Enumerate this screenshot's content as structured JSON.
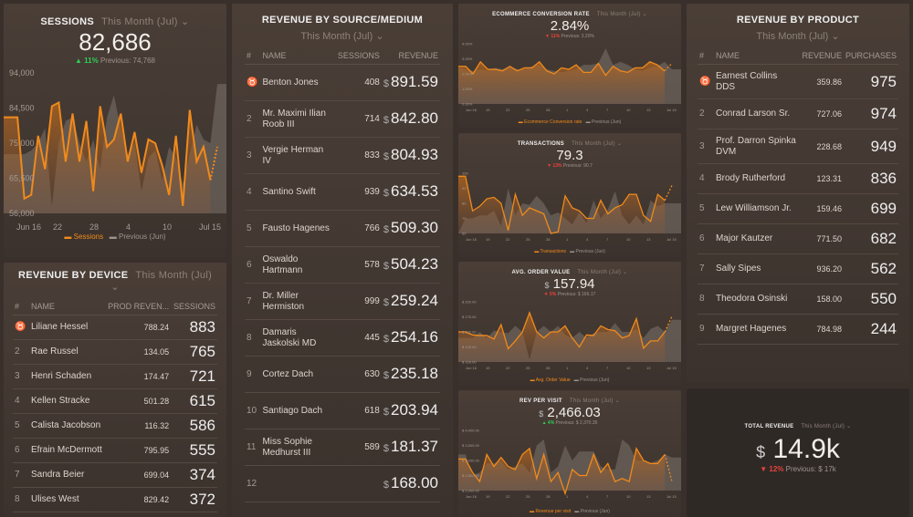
{
  "sessions": {
    "title": "SESSIONS",
    "period": "This Month (Jul)",
    "value": "82,686",
    "change": "11%",
    "direction": "up",
    "previous": "Previous: 74,768",
    "legend_current": "Sessions",
    "legend_previous": "Previous (Jun)"
  },
  "device": {
    "title": "REVENUE BY DEVICE",
    "period": "This Month (Jul)",
    "columns": [
      "#",
      "NAME",
      "PROD REVEN...",
      "SESSIONS"
    ],
    "rows": [
      {
        "rank": "1",
        "name": "Liliane Hessel",
        "rev": "788.24",
        "val": "883"
      },
      {
        "rank": "2",
        "name": "Rae Russel",
        "rev": "134.05",
        "val": "765"
      },
      {
        "rank": "3",
        "name": "Henri Schaden",
        "rev": "174.47",
        "val": "721"
      },
      {
        "rank": "4",
        "name": "Kellen Stracke",
        "rev": "501.28",
        "val": "615"
      },
      {
        "rank": "5",
        "name": "Calista Jacobson",
        "rev": "116.32",
        "val": "586"
      },
      {
        "rank": "6",
        "name": "Efrain McDermott",
        "rev": "795.95",
        "val": "555"
      },
      {
        "rank": "7",
        "name": "Sandra Beier",
        "rev": "699.04",
        "val": "374"
      },
      {
        "rank": "8",
        "name": "Ulises West",
        "rev": "829.42",
        "val": "372"
      }
    ]
  },
  "source": {
    "title": "REVENUE BY SOURCE/MEDIUM",
    "period": "This Month (Jul)",
    "columns": [
      "#",
      "NAME",
      "SESSIONS",
      "REVENUE"
    ],
    "currency": "$",
    "rows": [
      {
        "rank": "1",
        "name": "Benton Jones",
        "sessions": "408",
        "rev": "891.59"
      },
      {
        "rank": "2",
        "name": "Mr. Maximi Ilian Roob III",
        "sessions": "714",
        "rev": "842.80"
      },
      {
        "rank": "3",
        "name": "Vergie Herman IV",
        "sessions": "833",
        "rev": "804.93"
      },
      {
        "rank": "4",
        "name": "Santino Swift",
        "sessions": "939",
        "rev": "634.53"
      },
      {
        "rank": "5",
        "name": "Fausto Hagenes",
        "sessions": "766",
        "rev": "509.30"
      },
      {
        "rank": "6",
        "name": "Oswaldo Hartmann",
        "sessions": "578",
        "rev": "504.23"
      },
      {
        "rank": "7",
        "name": "Dr. Miller Hermiston",
        "sessions": "999",
        "rev": "259.24"
      },
      {
        "rank": "8",
        "name": "Damaris Jaskolski MD",
        "sessions": "445",
        "rev": "254.16"
      },
      {
        "rank": "9",
        "name": "Cortez Dach",
        "sessions": "630",
        "rev": "235.18"
      },
      {
        "rank": "10",
        "name": "Santiago Dach",
        "sessions": "618",
        "rev": "203.94"
      },
      {
        "rank": "11",
        "name": "Miss Sophie Medhurst III",
        "sessions": "589",
        "rev": "181.37"
      },
      {
        "rank": "12",
        "name": "",
        "sessions": "",
        "rev": "168.00"
      }
    ]
  },
  "product": {
    "title": "REVENUE BY PRODUCT",
    "period": "This Month (Jul)",
    "columns": [
      "#",
      "NAME",
      "REVENUE",
      "PURCHASES"
    ],
    "rows": [
      {
        "rank": "1",
        "name": "Earnest Collins DDS",
        "rev": "359.86",
        "val": "975"
      },
      {
        "rank": "2",
        "name": "Conrad Larson Sr.",
        "rev": "727.06",
        "val": "974"
      },
      {
        "rank": "3",
        "name": "Prof. Darron Spinka DVM",
        "rev": "228.68",
        "val": "949"
      },
      {
        "rank": "4",
        "name": "Brody Rutherford",
        "rev": "123.31",
        "val": "836"
      },
      {
        "rank": "5",
        "name": "Lew Williamson Jr.",
        "rev": "159.46",
        "val": "699"
      },
      {
        "rank": "6",
        "name": "Major Kautzer",
        "rev": "771.50",
        "val": "682"
      },
      {
        "rank": "7",
        "name": "Sally Sipes",
        "rev": "936.20",
        "val": "562"
      },
      {
        "rank": "8",
        "name": "Theodora Osinski",
        "rev": "158.00",
        "val": "550"
      },
      {
        "rank": "9",
        "name": "Margret Hagenes",
        "rev": "784.98",
        "val": "244"
      }
    ]
  },
  "total": {
    "title": "TOTAL REVENUE",
    "period": "This Month (Jul)",
    "currency": "$",
    "value": "14.9k",
    "change": "12%",
    "direction": "down",
    "previous": "Previous: $ 17k"
  },
  "small": [
    {
      "title": "ECOMMERCE CONVERSION RATE",
      "period": "This Month (Jul)",
      "currency": "",
      "value": "2.84%",
      "change": "11%",
      "direction": "down",
      "previous": "Previous: 3.20%",
      "legend_current": "Ecommerce Conversion rate",
      "legend_previous": "Previous (Jun)"
    },
    {
      "title": "TRANSACTIONS",
      "period": "This Month (Jul)",
      "currency": "",
      "value": "79.3",
      "change": "13%",
      "direction": "down",
      "previous": "Previous: 90.7",
      "legend_current": "Transactions",
      "legend_previous": "Previous (Jun)"
    },
    {
      "title": "AVG. ORDER VALUE",
      "period": "This Month (Jul)",
      "currency": "$",
      "value": "157.94",
      "change": "5%",
      "direction": "down",
      "previous": "Previous: $ 166.17",
      "legend_current": "Avg. Order Value",
      "legend_previous": "Previous (Jun)"
    },
    {
      "title": "REV PER VISIT",
      "period": "This Month (Jul)",
      "currency": "$",
      "value": "2,466.03",
      "change": "4%",
      "direction": "up",
      "previous": "Previous: $ 2,370.35",
      "legend_current": "Revenue per visit",
      "legend_previous": "Previous (Jun)"
    }
  ],
  "colors": {
    "accent": "#f08a1c",
    "up": "#2ecc55",
    "down": "#e8433a"
  },
  "chart_data": [
    {
      "type": "area",
      "title": "SESSIONS",
      "ylim": [
        56000,
        94000
      ],
      "yticks": [
        "94,000",
        "84,500",
        "75,000",
        "65,500",
        "56,000"
      ],
      "xticks": [
        "Jun 16",
        "22",
        "28",
        "4",
        "10",
        "Jul 15"
      ],
      "series": [
        {
          "name": "Sessions",
          "values": [
            82000,
            82000,
            82000,
            60000,
            61000,
            77000,
            68000,
            85000,
            86000,
            70000,
            83000,
            70000,
            81000,
            62000,
            85000,
            74000,
            76000,
            83000,
            70000,
            78000,
            67000,
            76000,
            75000,
            69000,
            61000,
            77000,
            58000,
            84000,
            70000,
            74000,
            65000,
            74000
          ]
        },
        {
          "name": "Previous (Jun)",
          "values": [
            72000,
            72000,
            72000,
            72000,
            73000,
            75000,
            79000,
            58000,
            75000,
            81000,
            82000,
            75000,
            70000,
            76000,
            68000,
            82000,
            88000,
            79000,
            72000,
            75000,
            62000,
            71000,
            73000,
            65000,
            74000,
            71000,
            64000,
            72000,
            80000,
            76000,
            75000,
            91000
          ]
        }
      ]
    },
    {
      "type": "area",
      "title": "ECOMMERCE CONVERSION RATE",
      "ylim": [
        0,
        4
      ],
      "yticks": [
        "4.00%",
        "3.00%",
        "2.00%",
        "1.00%",
        "0.00%"
      ],
      "xticks": [
        "Jun 16",
        "19",
        "22",
        "25",
        "28",
        "1",
        "4",
        "7",
        "10",
        "13",
        "Jul 15"
      ],
      "series": [
        {
          "name": "Ecommerce Conversion rate",
          "values": [
            2.5,
            2.5,
            2,
            2.8,
            2.3,
            2.3,
            2.2,
            2.5,
            2.2,
            2.4,
            2.4,
            2.8,
            2.2,
            2,
            2.4,
            2.3,
            2.6,
            2.1,
            2.1,
            2.7,
            1.9,
            2.5,
            2.2,
            2.1,
            2.4,
            2.4,
            2.8,
            2.6,
            2.2,
            2.7
          ]
        },
        {
          "name": "Previous (Jun)",
          "values": [
            2.4,
            2.3,
            2.2,
            2.3,
            2.2,
            2.4,
            2.3,
            2.5,
            2.3,
            2.3,
            2.5,
            2.6,
            2.3,
            2.2,
            2.1,
            2.2,
            2.3,
            2.6,
            2.6,
            2.7,
            3.7,
            2.6,
            2.8,
            2.6,
            2.3,
            2.2,
            2.4,
            2.5,
            2.8,
            2.3
          ]
        }
      ]
    },
    {
      "type": "area",
      "title": "TRANSACTIONS",
      "ylim": [
        60,
        100
      ],
      "yticks": [
        "100",
        "90",
        "80",
        "70",
        "60"
      ],
      "xticks": [
        "Jun 16",
        "19",
        "22",
        "25",
        "28",
        "1",
        "4",
        "7",
        "10",
        "13",
        "Jul 15"
      ],
      "series": [
        {
          "name": "Transactions",
          "values": [
            98,
            98,
            75,
            78,
            83,
            84,
            80,
            62,
            86,
            72,
            77,
            75,
            73,
            60,
            61,
            85,
            77,
            75,
            70,
            70,
            82,
            73,
            77,
            79,
            86,
            86,
            72,
            68,
            86,
            82,
            92
          ]
        },
        {
          "name": "Previous (Jun)",
          "values": [
            60,
            70,
            70,
            72,
            72,
            75,
            65,
            90,
            72,
            80,
            79,
            85,
            80,
            72,
            74,
            70,
            66,
            74,
            67,
            82,
            70,
            76,
            88,
            72,
            66,
            72,
            66,
            82,
            78,
            80,
            80
          ]
        }
      ]
    },
    {
      "type": "area",
      "title": "AVG. ORDER VALUE",
      "ylim": [
        100,
        200
      ],
      "yticks": [
        "$ 200.00",
        "$ 175.00",
        "$ 150.00",
        "$ 125.00",
        "$ 100.00"
      ],
      "xticks": [
        "Jun 16",
        "19",
        "22",
        "25",
        "28",
        "1",
        "4",
        "7",
        "10",
        "13",
        "Jul 15"
      ],
      "series": [
        {
          "name": "Avg. Order Value",
          "values": [
            150,
            150,
            145,
            144,
            144,
            138,
            162,
            122,
            135,
            150,
            182,
            150,
            140,
            150,
            150,
            160,
            140,
            125,
            145,
            144,
            160,
            154,
            152,
            140,
            144,
            172,
            123,
            135,
            135,
            150,
            176
          ]
        },
        {
          "name": "Previous (Jun)",
          "values": [
            140,
            140,
            140,
            150,
            140,
            152,
            150,
            148,
            160,
            150,
            104,
            150,
            160,
            150,
            160,
            145,
            140,
            150,
            140,
            148,
            150,
            150,
            165,
            150,
            150,
            155,
            140,
            155,
            160,
            150,
            170
          ]
        }
      ]
    },
    {
      "type": "area",
      "title": "REV PER VISIT",
      "ylim": [
        2000,
        4000
      ],
      "yticks": [
        "$ 4,000.00",
        "$ 3,500.00",
        "$ 3,000.00",
        "$ 2,500.00",
        "$ 2,000.00"
      ],
      "xticks": [
        "Jun 16",
        "19",
        "22",
        "25",
        "28",
        "1",
        "4",
        "7",
        "10",
        "13",
        "Jul 15"
      ],
      "series": [
        {
          "name": "Revenue per visit",
          "values": [
            3050,
            3050,
            2600,
            2300,
            3200,
            2800,
            3100,
            2800,
            2700,
            3200,
            3400,
            2400,
            3200,
            2300,
            2600,
            1900,
            2700,
            2500,
            2500,
            3200,
            2600,
            2900,
            2300,
            2400,
            2300,
            3400,
            3000,
            2900,
            2900,
            3200,
            2300
          ]
        },
        {
          "name": "Previous (Jun)",
          "values": [
            3200,
            3200,
            2500,
            2600,
            2900,
            2900,
            3000,
            2700,
            2800,
            2900,
            2600,
            3500,
            3700,
            2600,
            2800,
            3500,
            3000,
            3300,
            3300,
            3300,
            2800,
            2700,
            2700,
            3700,
            3500,
            3000,
            3000,
            2900,
            3000,
            3200,
            3100
          ]
        }
      ]
    }
  ]
}
